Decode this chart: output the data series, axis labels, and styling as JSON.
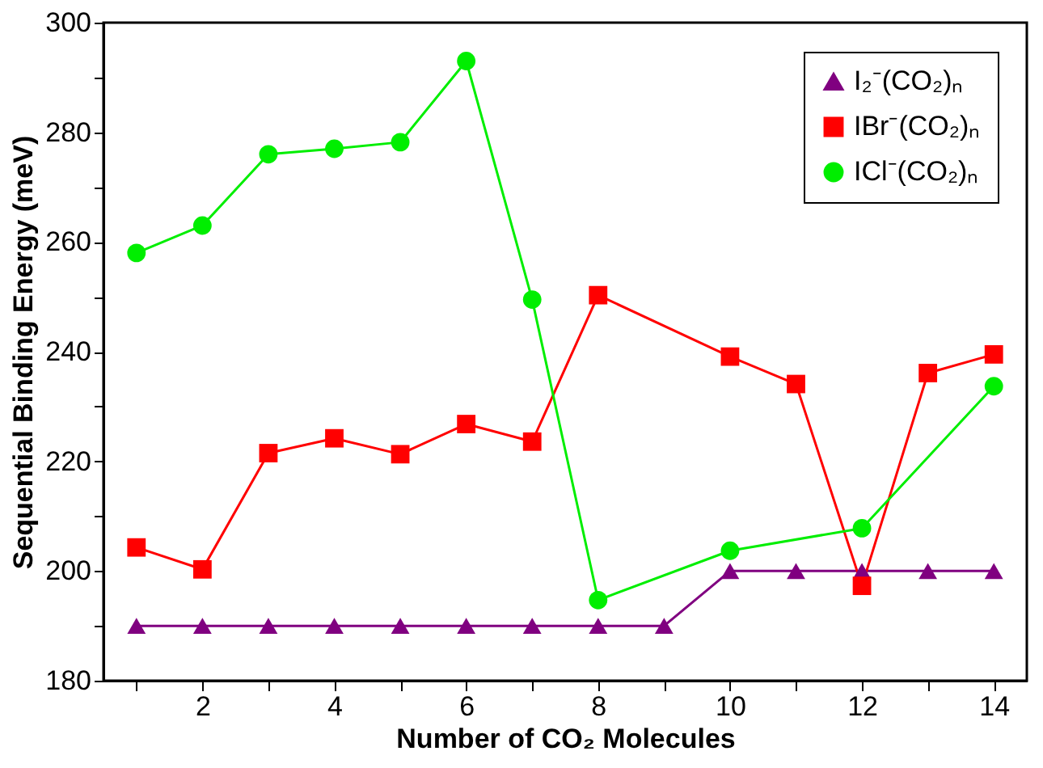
{
  "chart_data": {
    "type": "line",
    "xlabel": "Number of CO₂ Molecules",
    "ylabel": "Sequential Binding Energy (meV)",
    "xlim": [
      0.5,
      14.5
    ],
    "ylim": [
      180,
      300
    ],
    "xticks": [
      {
        "value": 1,
        "label": null
      },
      2,
      {
        "value": 3,
        "label": null
      },
      4,
      {
        "value": 5,
        "label": null
      },
      6,
      {
        "value": 7,
        "label": null
      },
      8,
      {
        "value": 9,
        "label": null
      },
      10,
      {
        "value": 11,
        "label": null
      },
      12,
      {
        "value": 13,
        "label": null
      },
      14
    ],
    "yticks": [
      180,
      {
        "value": 190,
        "label": null
      },
      200,
      {
        "value": 210,
        "label": null
      },
      220,
      {
        "value": 230,
        "label": null
      },
      240,
      {
        "value": 250,
        "label": null
      },
      260,
      {
        "value": 270,
        "label": null
      },
      280,
      {
        "value": 290,
        "label": null
      },
      300
    ],
    "grid": false,
    "legend": "top right",
    "line_style": "solid",
    "series": [
      {
        "name": "I₂⁻(CO₂)ₙ",
        "color": "#800080",
        "marker": "triangle",
        "x": [
          1,
          2,
          3,
          4,
          5,
          6,
          7,
          8,
          9,
          10,
          11,
          12,
          13,
          14
        ],
        "values": [
          190,
          190,
          190,
          190,
          190,
          190,
          190,
          190,
          190,
          200,
          200,
          200,
          200,
          200
        ]
      },
      {
        "name": "IBr⁻(CO₂)ₙ",
        "color": "#ff0000",
        "marker": "square",
        "x": [
          1,
          2,
          3,
          4,
          5,
          6,
          7,
          8,
          10,
          11,
          12,
          13,
          14
        ],
        "values": [
          204.3,
          200.3,
          221.5,
          224.2,
          221.3,
          226.8,
          223.6,
          250.3,
          239.1,
          234.1,
          197.3,
          236.1,
          239.5
        ]
      },
      {
        "name": "ICl⁻(CO₂)ₙ",
        "color": "#00ee00",
        "marker": "circle",
        "x": [
          1,
          2,
          3,
          4,
          5,
          6,
          7,
          8,
          10,
          12,
          14
        ],
        "values": [
          258,
          263,
          276,
          277,
          278.2,
          293,
          249.5,
          194.7,
          203.7,
          207.8,
          233.7
        ]
      }
    ]
  }
}
